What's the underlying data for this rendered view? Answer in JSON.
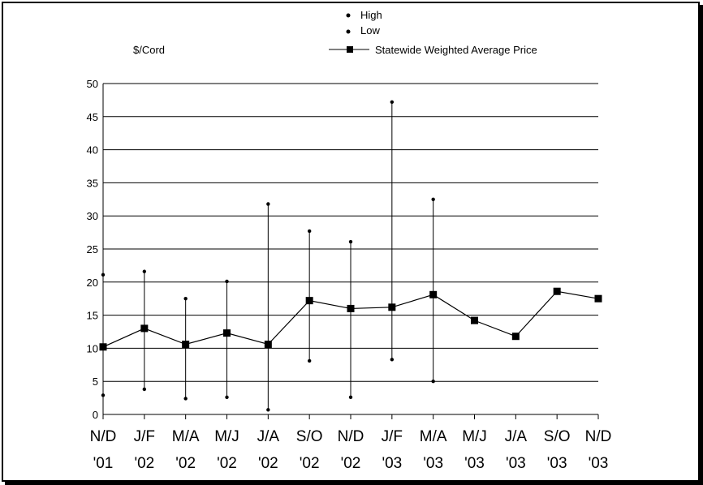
{
  "chart_data": {
    "type": "line",
    "ylabel": "$/Cord",
    "ylim": [
      0,
      50
    ],
    "yticks": [
      0,
      5,
      10,
      15,
      20,
      25,
      30,
      35,
      40,
      45,
      50
    ],
    "grid": true,
    "legend_position": "top-center",
    "categories": [
      {
        "top": "N/D",
        "bottom": "'01"
      },
      {
        "top": "J/F",
        "bottom": "'02"
      },
      {
        "top": "M/A",
        "bottom": "'02"
      },
      {
        "top": "M/J",
        "bottom": "'02"
      },
      {
        "top": "J/A",
        "bottom": "'02"
      },
      {
        "top": "S/O",
        "bottom": "'02"
      },
      {
        "top": "N/D",
        "bottom": "'02"
      },
      {
        "top": "J/F",
        "bottom": "'03"
      },
      {
        "top": "M/A",
        "bottom": "'03"
      },
      {
        "top": "M/J",
        "bottom": "'03"
      },
      {
        "top": "J/A",
        "bottom": "'03"
      },
      {
        "top": "S/O",
        "bottom": "'03"
      },
      {
        "top": "N/D",
        "bottom": "'03"
      }
    ],
    "series": [
      {
        "name": "High",
        "values": [
          21.1,
          21.6,
          17.5,
          20.1,
          31.8,
          27.7,
          26.1,
          47.2,
          32.5,
          null,
          null,
          null,
          null
        ]
      },
      {
        "name": "Low",
        "values": [
          2.9,
          3.8,
          2.4,
          2.6,
          0.7,
          8.1,
          2.6,
          8.3,
          5.0,
          null,
          null,
          null,
          null
        ]
      },
      {
        "name": "Statewide Weighted Average Price",
        "values": [
          10.2,
          13.0,
          10.6,
          12.3,
          10.6,
          17.2,
          16.0,
          16.2,
          18.1,
          14.2,
          11.8,
          18.6,
          17.5
        ]
      }
    ],
    "colors": {
      "line": "#000000",
      "grid": "#000000",
      "marker": "#000000"
    }
  }
}
